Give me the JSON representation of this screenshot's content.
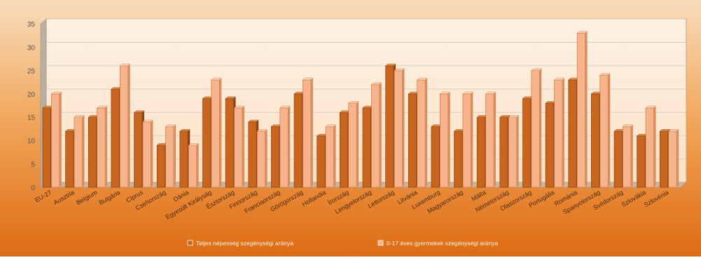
{
  "chart_data": {
    "type": "bar",
    "title": "",
    "xlabel": "",
    "ylabel": "",
    "ylim": [
      0,
      35
    ],
    "yticks": [
      0,
      5,
      10,
      15,
      20,
      25,
      30,
      35
    ],
    "grid": true,
    "legend_position": "bottom",
    "categories": [
      "EU-27",
      "Ausztria",
      "Belgium",
      "Bulgária",
      "Ciprus",
      "Csehország",
      "Dánia",
      "Egyesült Királyság",
      "Észtország",
      "Finnország",
      "Franciaország",
      "Görögország",
      "Hollandia",
      "Írország",
      "Lengyelország",
      "Lettország",
      "Litvánia",
      "Luxemburg",
      "Magyarország",
      "Málta",
      "Németország",
      "Olaszország",
      "Portugália",
      "Románia",
      "Spanyolország",
      "Svédország",
      "Szlovákia",
      "Szlovénia"
    ],
    "series": [
      {
        "name": "Teljes népesség szegénységi aránya",
        "values": [
          17,
          12,
          15,
          21,
          16,
          9,
          12,
          19,
          19,
          14,
          13,
          20,
          11,
          16,
          17,
          26,
          20,
          13,
          12,
          15,
          15,
          19,
          18,
          23,
          20,
          12,
          11,
          12
        ]
      },
      {
        "name": "0-17 éves gyermekek szegénységi aránya",
        "values": [
          20,
          15,
          17,
          26,
          14,
          13,
          9,
          23,
          17,
          12,
          17,
          23,
          13,
          18,
          22,
          25,
          23,
          20,
          20,
          20,
          15,
          25,
          23,
          33,
          24,
          13,
          17,
          12
        ]
      }
    ]
  },
  "colors": {
    "series1": "#c8651e",
    "series2": "#f7b48c",
    "banner_top": "#f6cfa3",
    "banner_bottom": "#df7016",
    "plot_face": "#fde8d0"
  }
}
